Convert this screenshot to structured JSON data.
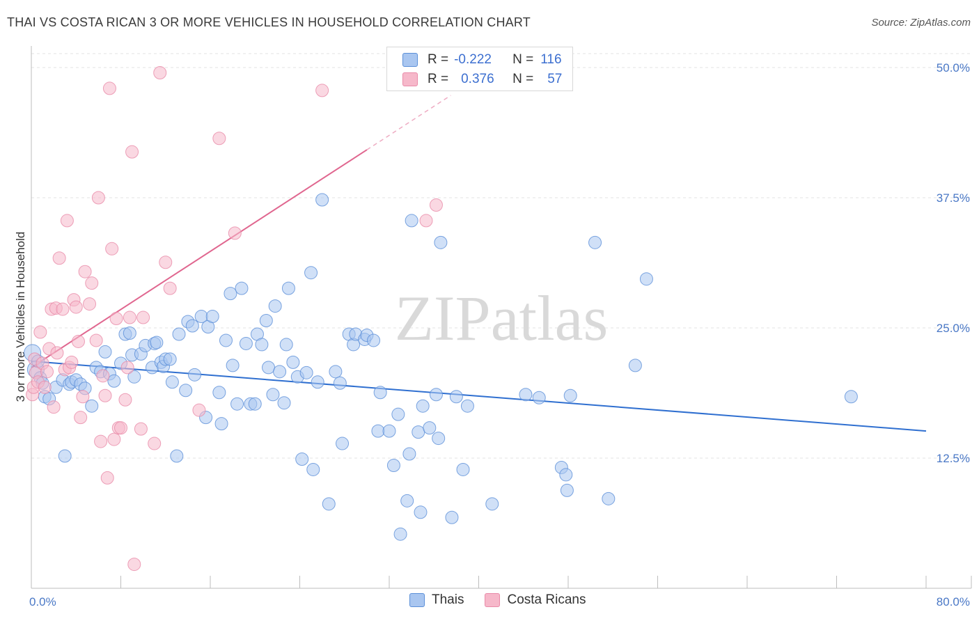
{
  "title": "THAI VS COSTA RICAN 3 OR MORE VEHICLES IN HOUSEHOLD CORRELATION CHART",
  "source": "Source: ZipAtlas.com",
  "watermark": "ZIPatlas",
  "colors": {
    "thai_fill": "#a9c6f0",
    "thai_stroke": "#5b8fd8",
    "thai_line": "#2f6fd0",
    "cr_fill": "#f6b8ca",
    "cr_stroke": "#e98aa8",
    "cr_line": "#e0668f",
    "tick_text": "#4a78c6",
    "grid": "#e3e3e3"
  },
  "legend": {
    "rows": [
      {
        "r_label": "R =",
        "r_value": "-0.222",
        "n_label": "N =",
        "n_value": "116"
      },
      {
        "r_label": "R =",
        "r_value": "0.376",
        "n_label": "N =",
        "n_value": "57"
      }
    ]
  },
  "chart_data": {
    "type": "scatter",
    "title": "THAI VS COSTA RICAN 3 OR MORE VEHICLES IN HOUSEHOLD CORRELATION CHART",
    "xlabel": "",
    "ylabel": "3 or more Vehicles in Household",
    "xlim": [
      0,
      80
    ],
    "ylim": [
      0,
      50
    ],
    "x_tick_labels": [
      "0.0%",
      "80.0%"
    ],
    "y_tick_values": [
      12.5,
      25.0,
      37.5,
      50.0
    ],
    "y_tick_labels": [
      "12.5%",
      "25.0%",
      "37.5%",
      "50.0%"
    ],
    "grid": true,
    "legend_position": "top-center",
    "series": [
      {
        "name": "Thais",
        "r": -0.222,
        "n": 116,
        "trend": {
          "x": [
            0,
            80
          ],
          "y": [
            21.8,
            15.1
          ]
        },
        "points": [
          [
            0.1,
            22.6
          ],
          [
            0.4,
            21.0
          ],
          [
            0.6,
            21.8
          ],
          [
            0.8,
            20.2
          ],
          [
            1.0,
            19.7
          ],
          [
            1.2,
            18.4
          ],
          [
            1.6,
            18.2
          ],
          [
            2.2,
            19.3
          ],
          [
            2.8,
            20.0
          ],
          [
            3.0,
            12.7
          ],
          [
            3.4,
            19.6
          ],
          [
            3.6,
            19.8
          ],
          [
            4.0,
            20.0
          ],
          [
            4.4,
            19.6
          ],
          [
            4.8,
            19.2
          ],
          [
            5.4,
            17.5
          ],
          [
            5.8,
            21.2
          ],
          [
            6.2,
            20.8
          ],
          [
            6.6,
            22.7
          ],
          [
            7.0,
            20.6
          ],
          [
            7.4,
            19.9
          ],
          [
            8.0,
            21.6
          ],
          [
            8.4,
            24.4
          ],
          [
            8.8,
            24.5
          ],
          [
            9.0,
            22.4
          ],
          [
            9.2,
            20.3
          ],
          [
            9.8,
            22.5
          ],
          [
            10.2,
            23.3
          ],
          [
            10.8,
            21.2
          ],
          [
            11.0,
            23.5
          ],
          [
            11.2,
            23.6
          ],
          [
            11.6,
            21.7
          ],
          [
            11.8,
            21.3
          ],
          [
            12.0,
            22.0
          ],
          [
            12.4,
            22.0
          ],
          [
            12.6,
            19.8
          ],
          [
            13.0,
            12.7
          ],
          [
            13.2,
            24.4
          ],
          [
            13.8,
            19.0
          ],
          [
            14.0,
            25.6
          ],
          [
            14.4,
            25.2
          ],
          [
            14.6,
            20.5
          ],
          [
            15.2,
            26.1
          ],
          [
            15.6,
            16.4
          ],
          [
            15.8,
            25.1
          ],
          [
            16.2,
            26.1
          ],
          [
            16.8,
            18.8
          ],
          [
            17.0,
            15.8
          ],
          [
            17.4,
            23.8
          ],
          [
            17.8,
            28.3
          ],
          [
            18.0,
            21.4
          ],
          [
            18.4,
            17.7
          ],
          [
            18.8,
            28.8
          ],
          [
            19.2,
            23.5
          ],
          [
            19.6,
            17.7
          ],
          [
            20.0,
            17.7
          ],
          [
            20.2,
            24.4
          ],
          [
            20.6,
            23.4
          ],
          [
            21.0,
            25.7
          ],
          [
            21.2,
            21.2
          ],
          [
            21.6,
            18.6
          ],
          [
            21.8,
            27.1
          ],
          [
            22.2,
            20.8
          ],
          [
            22.6,
            17.8
          ],
          [
            22.8,
            23.4
          ],
          [
            23.0,
            28.8
          ],
          [
            23.4,
            21.7
          ],
          [
            23.8,
            20.3
          ],
          [
            24.2,
            12.4
          ],
          [
            24.6,
            20.7
          ],
          [
            25.0,
            30.3
          ],
          [
            25.2,
            11.4
          ],
          [
            25.6,
            19.8
          ],
          [
            26.0,
            37.3
          ],
          [
            26.6,
            8.1
          ],
          [
            27.2,
            20.8
          ],
          [
            27.6,
            19.7
          ],
          [
            27.8,
            13.9
          ],
          [
            28.4,
            24.4
          ],
          [
            28.8,
            23.4
          ],
          [
            29.0,
            24.4
          ],
          [
            29.8,
            23.9
          ],
          [
            30.0,
            24.3
          ],
          [
            30.6,
            23.8
          ],
          [
            31.0,
            15.1
          ],
          [
            31.2,
            18.8
          ],
          [
            32.0,
            15.1
          ],
          [
            32.4,
            11.8
          ],
          [
            32.8,
            16.7
          ],
          [
            33.0,
            5.2
          ],
          [
            33.6,
            8.4
          ],
          [
            33.8,
            12.9
          ],
          [
            34.0,
            35.3
          ],
          [
            34.6,
            15.0
          ],
          [
            34.8,
            7.3
          ],
          [
            35.0,
            17.5
          ],
          [
            35.6,
            15.4
          ],
          [
            36.2,
            18.6
          ],
          [
            36.4,
            14.4
          ],
          [
            36.6,
            33.2
          ],
          [
            37.6,
            6.8
          ],
          [
            38.0,
            18.4
          ],
          [
            38.6,
            11.4
          ],
          [
            39.0,
            17.5
          ],
          [
            41.2,
            8.1
          ],
          [
            44.2,
            18.6
          ],
          [
            45.4,
            18.3
          ],
          [
            47.4,
            11.6
          ],
          [
            47.8,
            10.9
          ],
          [
            47.9,
            9.4
          ],
          [
            48.2,
            18.5
          ],
          [
            50.4,
            33.2
          ],
          [
            51.6,
            8.6
          ],
          [
            54.0,
            21.4
          ],
          [
            55.0,
            29.7
          ],
          [
            73.3,
            18.4
          ]
        ]
      },
      {
        "name": "Costa Ricans",
        "r": 0.376,
        "n": 57,
        "trend": {
          "x": [
            0,
            30
          ],
          "y": [
            21.2,
            42.1
          ]
        },
        "points": [
          [
            0.1,
            18.6
          ],
          [
            0.2,
            19.3
          ],
          [
            0.3,
            22.0
          ],
          [
            0.4,
            20.7
          ],
          [
            0.6,
            19.8
          ],
          [
            0.8,
            24.6
          ],
          [
            1.0,
            21.6
          ],
          [
            1.2,
            19.3
          ],
          [
            1.4,
            20.8
          ],
          [
            1.6,
            23.0
          ],
          [
            1.8,
            26.8
          ],
          [
            2.0,
            17.4
          ],
          [
            2.2,
            26.9
          ],
          [
            2.3,
            22.6
          ],
          [
            2.5,
            31.7
          ],
          [
            2.8,
            26.8
          ],
          [
            3.0,
            21.0
          ],
          [
            3.2,
            35.3
          ],
          [
            3.4,
            21.2
          ],
          [
            3.6,
            21.7
          ],
          [
            3.8,
            27.7
          ],
          [
            4.0,
            27.0
          ],
          [
            4.2,
            23.7
          ],
          [
            4.4,
            16.4
          ],
          [
            4.6,
            18.4
          ],
          [
            4.8,
            30.4
          ],
          [
            5.2,
            27.3
          ],
          [
            5.4,
            29.3
          ],
          [
            5.8,
            23.8
          ],
          [
            6.0,
            37.5
          ],
          [
            6.2,
            14.1
          ],
          [
            6.4,
            20.4
          ],
          [
            6.6,
            18.5
          ],
          [
            6.8,
            10.6
          ],
          [
            7.0,
            48.0
          ],
          [
            7.2,
            32.6
          ],
          [
            7.4,
            14.3
          ],
          [
            7.6,
            25.9
          ],
          [
            7.8,
            15.4
          ],
          [
            8.0,
            15.4
          ],
          [
            8.4,
            18.1
          ],
          [
            8.6,
            21.2
          ],
          [
            8.8,
            26.0
          ],
          [
            9.0,
            41.9
          ],
          [
            9.2,
            2.3
          ],
          [
            9.8,
            15.3
          ],
          [
            10.0,
            26.0
          ],
          [
            11.0,
            13.9
          ],
          [
            11.5,
            49.5
          ],
          [
            12.0,
            31.3
          ],
          [
            12.4,
            28.8
          ],
          [
            15.0,
            17.1
          ],
          [
            16.8,
            43.2
          ],
          [
            18.2,
            34.1
          ],
          [
            26.0,
            47.8
          ],
          [
            35.3,
            35.3
          ],
          [
            36.2,
            36.8
          ]
        ]
      }
    ]
  },
  "bottom_legend": [
    {
      "label": "Thais"
    },
    {
      "label": "Costa Ricans"
    }
  ]
}
